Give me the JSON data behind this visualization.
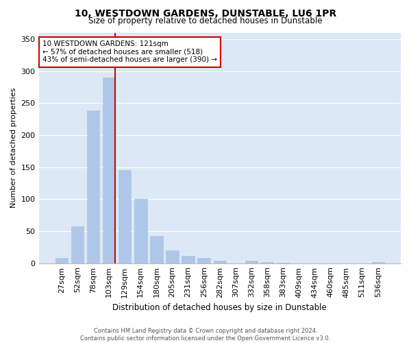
{
  "title1": "10, WESTDOWN GARDENS, DUNSTABLE, LU6 1PR",
  "title2": "Size of property relative to detached houses in Dunstable",
  "xlabel": "Distribution of detached houses by size in Dunstable",
  "ylabel": "Number of detached properties",
  "bar_labels": [
    "27sqm",
    "52sqm",
    "78sqm",
    "103sqm",
    "129sqm",
    "154sqm",
    "180sqm",
    "205sqm",
    "231sqm",
    "256sqm",
    "282sqm",
    "307sqm",
    "332sqm",
    "358sqm",
    "383sqm",
    "409sqm",
    "434sqm",
    "460sqm",
    "485sqm",
    "511sqm",
    "536sqm"
  ],
  "bar_values": [
    8,
    57,
    238,
    290,
    145,
    100,
    42,
    20,
    11,
    8,
    4,
    0,
    4,
    2,
    1,
    0,
    0,
    0,
    0,
    0,
    2
  ],
  "bar_color": "#aec6e8",
  "bar_edgecolor": "#aec6e8",
  "red_line_bar_index": 3,
  "annotation_text": "10 WESTDOWN GARDENS: 121sqm\n← 57% of detached houses are smaller (518)\n43% of semi-detached houses are larger (390) →",
  "annotation_box_color": "#ffffff",
  "annotation_box_edgecolor": "#cc0000",
  "ylim": [
    0,
    360
  ],
  "yticks": [
    0,
    50,
    100,
    150,
    200,
    250,
    300,
    350
  ],
  "background_color": "#dce8f5",
  "grid_color": "#ffffff",
  "footer1": "Contains HM Land Registry data © Crown copyright and database right 2024.",
  "footer2": "Contains public sector information licensed under the Open Government Licence v3.0."
}
